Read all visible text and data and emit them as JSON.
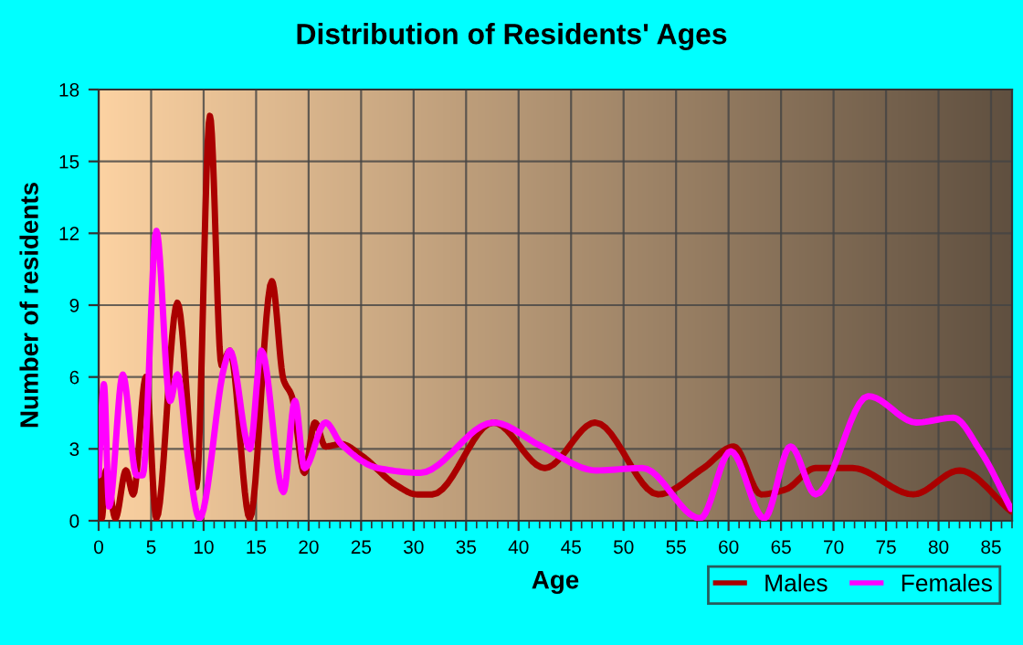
{
  "chart_data": {
    "type": "line",
    "title": "Distribution of Residents' Ages",
    "xlabel": "Age",
    "ylabel": "Number of residents",
    "xlim": [
      0,
      87
    ],
    "xticks": [
      0,
      5,
      10,
      15,
      20,
      25,
      30,
      35,
      40,
      45,
      50,
      55,
      60,
      65,
      70,
      75,
      80,
      85
    ],
    "ylim": [
      0,
      18
    ],
    "yticks": [
      0,
      3,
      6,
      9,
      12,
      15,
      18
    ],
    "grid": true,
    "legend": "bottom right",
    "line_style": "solid",
    "series": [
      {
        "name": "Males",
        "color": "#aa0000",
        "x": [
          0,
          0.3,
          0.7,
          1.6,
          2.6,
          3.3,
          4.5,
          5.5,
          7.5,
          9.3,
          10.6,
          11.7,
          12.5,
          14.4,
          16.5,
          17.6,
          18.4,
          19.6,
          20.6,
          21.6,
          23.1,
          25.1,
          28.3,
          30.3,
          31.8,
          37.6,
          42.5,
          47.3,
          53.3,
          57.6,
          60.5,
          63.1,
          65.4,
          68.3,
          71.8,
          77.6,
          82,
          86.9
        ],
        "values": [
          2.2,
          0.1,
          2.1,
          0.1,
          2.1,
          1.1,
          6,
          0.1,
          9.1,
          1.4,
          16.9,
          6.5,
          7.1,
          0.1,
          10,
          5.9,
          5.2,
          2,
          4.1,
          3.1,
          3.2,
          2.7,
          1.5,
          1.1,
          1.1,
          4.1,
          2.2,
          4.1,
          1.1,
          2.2,
          3.1,
          1.1,
          1.3,
          2.2,
          2.2,
          1.1,
          2.1,
          0.4
        ]
      },
      {
        "name": "Females",
        "color": "#ff00ff",
        "x": [
          0,
          0.5,
          1,
          2.3,
          3.6,
          4.2,
          5.5,
          6.8,
          7.5,
          8.5,
          9.6,
          12,
          12.5,
          14.4,
          15.5,
          17.6,
          18.7,
          19.6,
          21.6,
          23.1,
          26.6,
          30.6,
          37.6,
          42.2,
          47.4,
          51.8,
          57.3,
          60.2,
          63.4,
          65.9,
          68.3,
          73.3,
          77.9,
          81.4,
          84,
          86.9
        ],
        "values": [
          1.9,
          5.7,
          0.6,
          6.1,
          1.9,
          1.9,
          12.1,
          5,
          6.1,
          2.7,
          0.1,
          6.5,
          7.1,
          3,
          7.1,
          1.2,
          5,
          2.2,
          4.1,
          3.2,
          2.2,
          2,
          4.1,
          3.1,
          2.1,
          2.2,
          0.1,
          2.9,
          0.1,
          3.1,
          1.1,
          5.2,
          4.1,
          4.3,
          2.9,
          0.5
        ]
      }
    ]
  }
}
